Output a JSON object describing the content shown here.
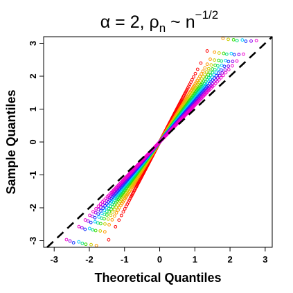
{
  "chart_data": {
    "type": "scatter",
    "title": {
      "alpha_symbol": "α",
      "eq": " = 2, ",
      "rho_symbol": "ρ",
      "rho_sub": "n",
      "sim": " ~ n",
      "exponent": "−1/2"
    },
    "xlabel": "Theoretical Quantiles",
    "ylabel": "Sample Quantiles",
    "xlim": [
      -3.3,
      3.2
    ],
    "ylim": [
      -3.2,
      3.2
    ],
    "x_ticks": [
      -3,
      -2,
      -1,
      0,
      1,
      2,
      3
    ],
    "x_tick_labels": [
      "-3",
      "-2",
      "-1",
      "0",
      "1",
      "2",
      "3"
    ],
    "y_ticks": [
      -3,
      -2,
      -1,
      0,
      1,
      2,
      3
    ],
    "y_tick_labels": [
      "-3",
      "-2",
      "-1",
      "0",
      "1",
      "2",
      "3"
    ],
    "reference_line": {
      "slope": 1,
      "intercept": 0,
      "style": "dashed",
      "color": "#000000"
    },
    "marker": "open-circle",
    "series": [
      {
        "color": "#ff0000",
        "slope": 2.05,
        "x_range": [
          -1.45,
          1.35
        ]
      },
      {
        "color": "#ff9900",
        "slope": 1.75,
        "x_range": [
          -1.8,
          1.8
        ]
      },
      {
        "color": "#cccc00",
        "slope": 1.6,
        "x_range": [
          -1.95,
          1.95
        ]
      },
      {
        "color": "#33dd00",
        "slope": 1.48,
        "x_range": [
          -2.1,
          2.1
        ]
      },
      {
        "color": "#00dd77",
        "slope": 1.4,
        "x_range": [
          -2.2,
          2.2
        ]
      },
      {
        "color": "#00ccff",
        "slope": 1.32,
        "x_range": [
          -2.3,
          2.35
        ]
      },
      {
        "color": "#1133ff",
        "slope": 1.25,
        "x_range": [
          -2.45,
          2.45
        ]
      },
      {
        "color": "#8800ee",
        "slope": 1.18,
        "x_range": [
          -2.55,
          2.6
        ]
      },
      {
        "color": "#ee00cc",
        "slope": 1.12,
        "x_range": [
          -2.65,
          2.75
        ]
      }
    ]
  }
}
